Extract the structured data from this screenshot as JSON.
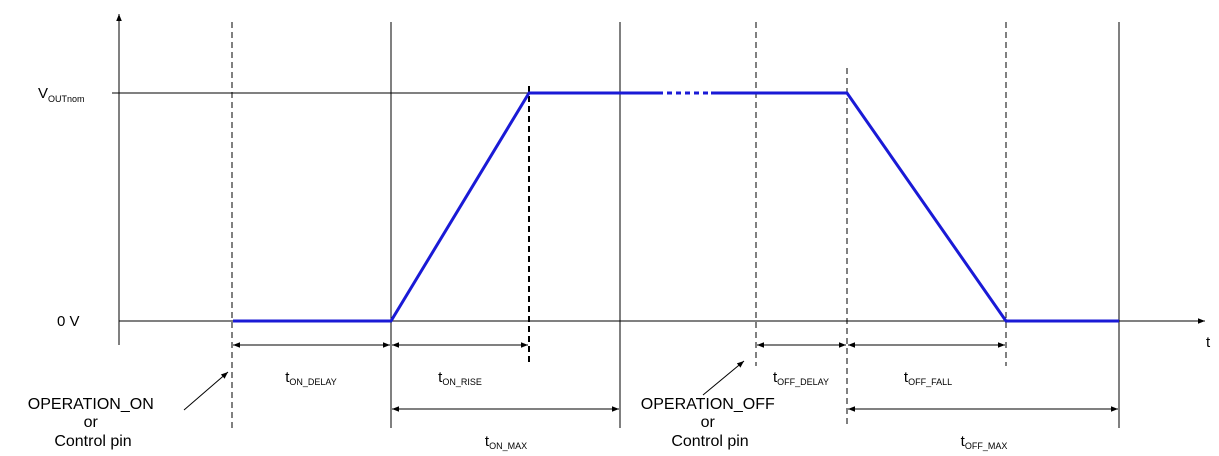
{
  "axes": {
    "x_label": "t",
    "y_high_label": {
      "main": "V",
      "sub": "OUTnom"
    },
    "y_low_label": "0 V"
  },
  "intervals": {
    "on_delay": {
      "main": "t",
      "sub": "ON_DELAY"
    },
    "on_rise": {
      "main": "t",
      "sub": "ON_RISE"
    },
    "on_max": {
      "main": "t",
      "sub": "ON_MAX"
    },
    "off_delay": {
      "main": "t",
      "sub": "OFF_DELAY"
    },
    "off_fall": {
      "main": "t",
      "sub": "OFF_FALL"
    },
    "off_max": {
      "main": "t",
      "sub": "OFF_MAX"
    }
  },
  "annotations": {
    "operation_on": [
      "OPERATION_ON",
      "or",
      "Control pin"
    ],
    "operation_off": [
      "OPERATION_OFF",
      "or",
      "Control pin"
    ]
  },
  "colors": {
    "waveform": "#1a1ad6",
    "lines": "#000000"
  }
}
